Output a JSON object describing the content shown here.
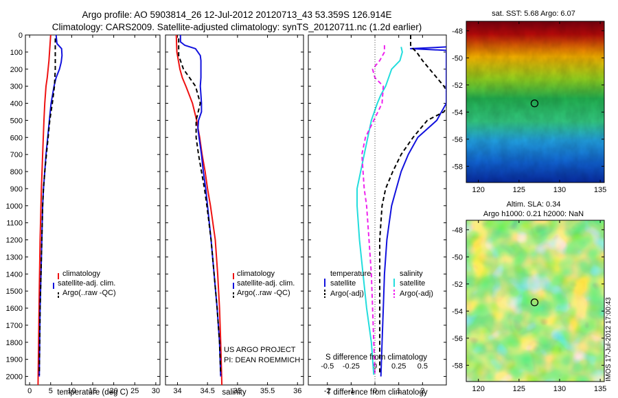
{
  "header": {
    "line1": "Argo profile: AO 5903814_26 12-Jul-2012 20120713_43 53.359S 126.914E",
    "line2": "Climatology: CARS2009. Satellite-adjusted climatology: synTS_20120711.nc (1.2d earlier)"
  },
  "colors": {
    "climatology": "#ee1111",
    "satellite": "#1111dd",
    "argo": "#000000",
    "cyan": "#22dddd",
    "magenta": "#ee22ee"
  },
  "project": {
    "line1": "US ARGO PROJECT",
    "line2": "PI: DEAN ROEMMICH"
  },
  "side_label": "IMOS 17-Jul-2012 17:00:43",
  "chart_data": [
    {
      "type": "line",
      "xlabel": "temperature (deg C)",
      "ylabel": "",
      "xlim": [
        -1,
        31
      ],
      "ylim": [
        2050,
        0
      ],
      "xticks": [
        0,
        5,
        10,
        15,
        20,
        25,
        30
      ],
      "yticks": [
        0,
        100,
        200,
        300,
        400,
        500,
        600,
        700,
        800,
        900,
        1000,
        1100,
        1200,
        1300,
        1400,
        1500,
        1600,
        1700,
        1800,
        1900,
        2000
      ],
      "legend": [
        "climatology",
        "satellite-adj. clim.",
        "Argo(..raw -QC)"
      ],
      "legend_loc": "lower-right",
      "series": [
        {
          "name": "climatology",
          "style": "clim",
          "depth": [
            0,
            150,
            250,
            300,
            400,
            500,
            700,
            900,
            1200,
            1500,
            2050
          ],
          "values": [
            5.0,
            4.6,
            4.2,
            3.9,
            3.6,
            3.4,
            3.1,
            2.8,
            2.5,
            2.3,
            2.0
          ]
        },
        {
          "name": "satellite-adj. clim.",
          "style": "sat",
          "depth": [
            0,
            50,
            80,
            120,
            160,
            200,
            250,
            300,
            400,
            500,
            600,
            700,
            800,
            900,
            1000,
            1200,
            1400,
            1600,
            1800,
            2000
          ],
          "values": [
            6.3,
            6.5,
            7.6,
            7.7,
            7.5,
            7.1,
            6.3,
            5.8,
            5.1,
            4.7,
            4.3,
            3.9,
            3.6,
            3.3,
            3.1,
            2.9,
            2.7,
            2.5,
            2.4,
            2.3
          ]
        },
        {
          "name": "Argo(..raw -QC)",
          "style": "argo",
          "depth": [
            20,
            100,
            200,
            250,
            300,
            400,
            500,
            600,
            700,
            800,
            900,
            1000,
            1200,
            1400,
            1600,
            1800,
            1990
          ],
          "values": [
            6.1,
            6.1,
            6.1,
            6.0,
            5.9,
            5.4,
            4.8,
            4.4,
            4.0,
            3.6,
            3.3,
            3.1,
            2.9,
            2.7,
            2.5,
            2.4,
            2.3
          ]
        }
      ]
    },
    {
      "type": "line",
      "xlabel": "salinity",
      "ylabel": "",
      "xlim": [
        33.8,
        36.1
      ],
      "ylim": [
        2050,
        0
      ],
      "xticks": [
        34,
        34.5,
        35,
        35.5,
        36
      ],
      "legend": [
        "climatology",
        "satellite-adj. clim.",
        "Argo(..raw -QC)"
      ],
      "legend_loc": "lower-right",
      "series": [
        {
          "name": "climatology",
          "style": "clim",
          "depth": [
            0,
            100,
            200,
            250,
            300,
            400,
            500,
            600,
            700,
            800,
            900,
            1000,
            1100,
            1200,
            1400,
            1600,
            1800,
            2050
          ],
          "values": [
            33.98,
            33.99,
            34.04,
            34.08,
            34.14,
            34.25,
            34.32,
            34.37,
            34.41,
            34.46,
            34.5,
            34.55,
            34.59,
            34.63,
            34.67,
            34.7,
            34.72,
            34.74
          ]
        },
        {
          "name": "satellite-adj. clim.",
          "style": "sat",
          "depth": [
            0,
            40,
            60,
            80,
            100,
            120,
            150,
            200,
            250,
            300,
            350,
            400,
            450,
            500,
            550,
            600,
            700,
            800,
            900,
            1000,
            1200,
            1400,
            1600,
            1800,
            2000
          ],
          "values": [
            34.05,
            34.05,
            34.12,
            34.3,
            34.34,
            34.38,
            34.39,
            34.39,
            34.39,
            34.38,
            34.39,
            34.4,
            34.4,
            34.35,
            34.34,
            34.36,
            34.4,
            34.43,
            34.47,
            34.5,
            34.56,
            34.61,
            34.66,
            34.7,
            34.72
          ]
        },
        {
          "name": "Argo(..raw -QC)",
          "style": "argo",
          "depth": [
            20,
            80,
            120,
            150,
            200,
            250,
            300,
            400,
            500,
            600,
            700,
            800,
            900,
            1000,
            1200,
            1400,
            1600,
            1800,
            1990
          ],
          "values": [
            34.02,
            34.02,
            34.02,
            34.05,
            34.1,
            34.2,
            34.3,
            34.38,
            34.31,
            34.31,
            34.35,
            34.4,
            34.45,
            34.49,
            34.56,
            34.61,
            34.66,
            34.7,
            34.72
          ]
        }
      ]
    },
    {
      "type": "line",
      "xlabel": "T difference from climatology",
      "xlabel2": "S difference from climatology",
      "xlim": [
        -2.8,
        3.0
      ],
      "ylim": [
        2050,
        0
      ],
      "xticks": [
        -2,
        -1,
        0,
        1,
        2
      ],
      "xticks2": [
        -0.5,
        -0.25,
        0,
        0.25,
        0.5
      ],
      "legend_titles": [
        "temperature",
        "salinity"
      ],
      "legend": [
        "satellite",
        "Argo(-adj)",
        "satellite",
        "Argo(-adj)"
      ],
      "series": [
        {
          "name": "satellite",
          "group": "temperature",
          "style": "sat",
          "depth": [
            70,
            80,
            90,
            100,
            300,
            400,
            500,
            600,
            700,
            800,
            900,
            1000,
            1100,
            1200,
            1400,
            1600,
            1800,
            2000
          ],
          "values": [
            3.0,
            1.5,
            3.0,
            3.0,
            3.0,
            3.0,
            2.6,
            1.8,
            1.4,
            1.1,
            0.9,
            0.7,
            0.6,
            0.5,
            0.4,
            0.35,
            0.3,
            0.25
          ]
        },
        {
          "name": "Argo(-adj)",
          "group": "temperature",
          "style": "argo",
          "depth": [
            0,
            60,
            80,
            100,
            150,
            200,
            250,
            300,
            350,
            400,
            450,
            500,
            600,
            700,
            800,
            900,
            1000,
            1200,
            1400,
            1600,
            1800,
            1990
          ],
          "values": [
            1.5,
            1.5,
            1.6,
            1.75,
            2.0,
            2.3,
            2.6,
            2.9,
            3.1,
            3.1,
            2.9,
            2.2,
            1.6,
            1.1,
            0.75,
            0.45,
            0.3,
            0.2,
            0.2,
            0.2,
            0.2,
            0.2
          ]
        },
        {
          "name": "satellite",
          "group": "salinity",
          "style": "cyan",
          "depth": [
            70,
            100,
            150,
            200,
            300,
            350,
            400,
            500,
            600,
            700,
            800,
            900,
            1000,
            1200,
            1400,
            1600,
            1800,
            1990
          ],
          "values": [
            1.1,
            1.15,
            1.05,
            0.7,
            0.45,
            0.25,
            0.1,
            -0.15,
            -0.3,
            -0.45,
            -0.6,
            -0.75,
            -0.75,
            -0.65,
            -0.5,
            -0.35,
            -0.15,
            -0.05
          ]
        },
        {
          "name": "Argo(-adj)",
          "group": "salinity",
          "style": "mag",
          "depth": [
            60,
            100,
            150,
            200,
            250,
            300,
            400,
            500,
            600,
            700,
            800,
            900,
            1000,
            1200,
            1400,
            1600,
            1800,
            1990
          ],
          "values": [
            0.4,
            0.4,
            0.2,
            -0.1,
            0.0,
            0.35,
            0.3,
            -0.05,
            -0.4,
            -0.55,
            -0.5,
            -0.45,
            -0.35,
            -0.25,
            -0.15,
            -0.1,
            -0.05,
            0.0
          ]
        }
      ]
    },
    {
      "type": "heatmap",
      "title": "sat. SST: 5.68 Argo: 6.07",
      "xlim": [
        118.5,
        135.5
      ],
      "ylim": [
        -59.2,
        -47.3
      ],
      "xticks": [
        120,
        125,
        130,
        135
      ],
      "yticks": [
        -48,
        -50,
        -52,
        -54,
        -56,
        -58
      ],
      "marker": {
        "lon": 126.914,
        "lat": -53.359
      }
    },
    {
      "type": "heatmap",
      "title": "Altim. SLA: 0.34",
      "title2": "Argo h1000: 0.21 h2000: NaN",
      "xlim": [
        118.5,
        135.5
      ],
      "ylim": [
        -59.2,
        -47.3
      ],
      "xticks": [
        120,
        125,
        130,
        135
      ],
      "yticks": [
        -48,
        -50,
        -52,
        -54,
        -56,
        -58
      ],
      "marker": {
        "lon": 126.914,
        "lat": -53.359
      }
    }
  ]
}
